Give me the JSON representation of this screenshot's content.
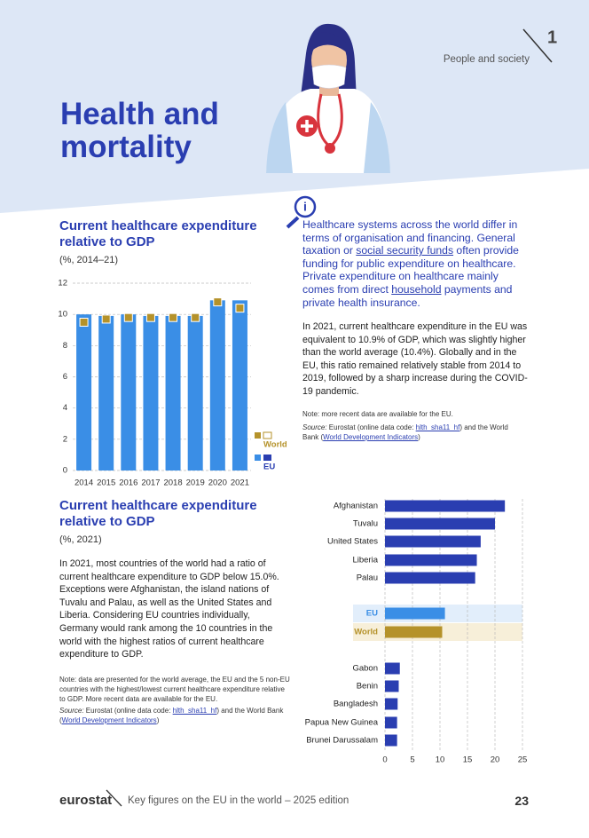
{
  "header": {
    "section": "People and society",
    "number": "1",
    "title": "Health and mortality"
  },
  "chart_data": [
    {
      "type": "bar",
      "title": "Current healthcare expenditure relative to GDP",
      "subtitle": "(%, 2014–21)",
      "categories": [
        "2014",
        "2015",
        "2016",
        "2017",
        "2018",
        "2019",
        "2020",
        "2021"
      ],
      "series": [
        {
          "name": "EU",
          "color": "#3a8ee6",
          "values": [
            10.0,
            9.9,
            10.0,
            9.9,
            9.9,
            9.9,
            10.9,
            10.9
          ]
        },
        {
          "name": "World",
          "color": "#b5922a",
          "marker": "square",
          "values": [
            9.5,
            9.7,
            9.8,
            9.8,
            9.8,
            9.8,
            10.8,
            10.4
          ]
        }
      ],
      "ylim": [
        0,
        12
      ],
      "yticks": [
        0,
        2,
        4,
        6,
        8,
        10,
        12
      ],
      "grid": true
    },
    {
      "type": "hbar",
      "title": "Current healthcare expenditure relative to GDP",
      "subtitle": "(%, 2021)",
      "categories": [
        "Afghanistan",
        "Tuvalu",
        "United States",
        "Liberia",
        "Palau",
        "EU",
        "World",
        "Gabon",
        "Benin",
        "Bangladesh",
        "Papua New Guinea",
        "Brunei Darussalam"
      ],
      "values": [
        21.8,
        20.0,
        17.4,
        16.7,
        16.4,
        10.9,
        10.4,
        2.7,
        2.5,
        2.3,
        2.2,
        2.2
      ],
      "colors": [
        "#2a3eb1",
        "#2a3eb1",
        "#2a3eb1",
        "#2a3eb1",
        "#2a3eb1",
        "#3a8ee6",
        "#b5922a",
        "#2a3eb1",
        "#2a3eb1",
        "#2a3eb1",
        "#2a3eb1",
        "#2a3eb1"
      ],
      "xlim": [
        0,
        25
      ],
      "xticks": [
        0,
        5,
        10,
        15,
        20,
        25
      ],
      "grid": true
    }
  ],
  "info": {
    "callout": [
      "Healthcare systems across the world differ in terms of organisation and financing. General taxation or ",
      "social security funds",
      " often provide funding for public expenditure on healthcare. Private expenditure on healthcare mainly comes from direct ",
      "household",
      " payments and private health insurance."
    ],
    "paragraph": "In 2021, current healthcare expenditure in the EU was equivalent to 10.9% of GDP, which was slightly higher than the world average (10.4%). Globally and in the EU, this ratio remained relatively stable from 2014 to 2019, followed by a sharp increase during the COVID-19 pandemic.",
    "note": "Note: more recent data are available for the EU.",
    "source": [
      "Source:",
      " Eurostat (online data code: ",
      "hlth_sha11_hf",
      ") and the World Bank (",
      "World Development Indicators",
      ")"
    ]
  },
  "section2": {
    "paragraph": "In 2021, most countries of the world had a ratio of current healthcare expenditure to GDP below 15.0%. Exceptions were Afghanistan, the island nations of Tuvalu and Palau, as well as the United States and Liberia. Considering EU countries individually, Germany would rank among the 10 countries in the world with the highest ratios of current healthcare expenditure to GDP.",
    "note": "Note: data are presented for the world average, the EU and the 5 non-EU countries with the highest/lowest current healthcare expenditure relative to GDP. More recent data are available for the EU.",
    "source": [
      "Source:",
      " Eurostat (online data code: ",
      "hlth_sha11_hf",
      ") and the World Bank (",
      "World Development Indicators",
      ")"
    ]
  },
  "footer": {
    "brand": "eurostat",
    "publication": "Key figures on the EU in the world – 2025 edition",
    "page": "23"
  }
}
